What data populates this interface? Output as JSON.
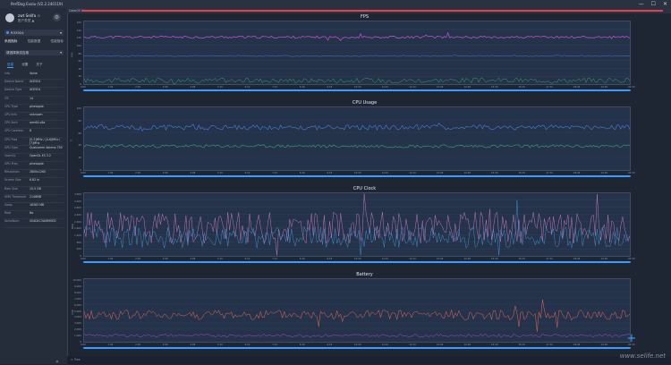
{
  "window": {
    "title": "PerfDog Evolu (V2.2.240119)",
    "min": "—",
    "max": "☐",
    "close": "✕"
  },
  "sidebar": {
    "user_name": "zwt Selifa ☆",
    "user_account": "账户类型  ▲",
    "device": "R33924",
    "nav": [
      "系统指标",
      "性能数据",
      "性能指标"
    ],
    "app": "请选择测试应用",
    "info_tabs": [
      "信息",
      "设置",
      "关于"
    ],
    "info": [
      {
        "k": "Info",
        "v": "Value"
      },
      {
        "k": "Device Name",
        "v": "XCE924"
      },
      {
        "k": "Device Type",
        "v": "XCE924"
      },
      {
        "k": "OS",
        "v": "14"
      },
      {
        "k": "CPU Type",
        "v": "pineapple"
      },
      {
        "k": "CPU Info",
        "v": "unknown"
      },
      {
        "k": "CPU Arch",
        "v": "arm64-v8a"
      },
      {
        "k": "CPU Coreless",
        "v": "8"
      },
      {
        "k": "CPU Freq",
        "v": "[0-3]MHz / [4-6]MHz / [7]MHz"
      },
      {
        "k": "GPU Type",
        "v": "Qualcomm Adreno 750"
      },
      {
        "k": "OpenGL",
        "v": "OpenGL ES 3.2"
      },
      {
        "k": "GPU Freq",
        "v": "pineapple"
      },
      {
        "k": "Resolution",
        "v": "2800x1260"
      },
      {
        "k": "Screen Size",
        "v": "6.82 in"
      },
      {
        "k": "Ram Size",
        "v": "15.5 GB"
      },
      {
        "k": "UMS Threshold",
        "v": "2146MB"
      },
      {
        "k": "Swap",
        "v": "16383 MB"
      },
      {
        "k": "Root",
        "v": "No"
      },
      {
        "k": "SerialNum",
        "v": "004D4C3A0690ED"
      }
    ],
    "collapse_icon": "«"
  },
  "topbar": {
    "tag": "ColorOS 14",
    "mark": "label1"
  },
  "panels": [
    {
      "title": "FPS",
      "ylabel": "FPS",
      "yticks": [
        "160",
        "140",
        "120",
        "100",
        "80",
        "60",
        "40",
        "20",
        "0"
      ]
    },
    {
      "title": "CPU Usage",
      "ylabel": "%",
      "yticks": [
        "100",
        "80",
        "60",
        "40",
        "20",
        "0"
      ]
    },
    {
      "title": "CPU Clock",
      "ylabel": "MHz",
      "yticks": [
        "3,600",
        "3,200",
        "2,800",
        "2,400",
        "2,000",
        "1,600",
        "1,200",
        "800",
        "400",
        "0"
      ]
    },
    {
      "title": "Battery",
      "ylabel": "mW",
      "yticks": [
        "10,000",
        "9,000",
        "8,000",
        "7,000",
        "6,000",
        "5,000",
        "4,000",
        "3,000",
        "2,000",
        "1,000",
        "0"
      ]
    }
  ],
  "xticks": [
    "0:00",
    "1:02",
    "2:04",
    "3:06",
    "4:08",
    "5:10",
    "6:12",
    "7:14",
    "8:16",
    "9:18",
    "10:20",
    "11:22",
    "12:24",
    "13:26",
    "14:28",
    "15:30",
    "16:32",
    "17:34",
    "18:36",
    "19:38",
    "20:40"
  ],
  "statusbar": {
    "label": "∞  Tres"
  },
  "watermark": "www.selife.net",
  "colors": {
    "fps": "#c850d8",
    "cpu_total": "#4a7fe0",
    "cpu_app": "#3ea86a",
    "clock_a": "#e78ad8",
    "clock_b": "#4aa3e8",
    "battery": "#ea6a58",
    "battery_b": "#b048d0",
    "accent": "#3b9cff"
  }
}
